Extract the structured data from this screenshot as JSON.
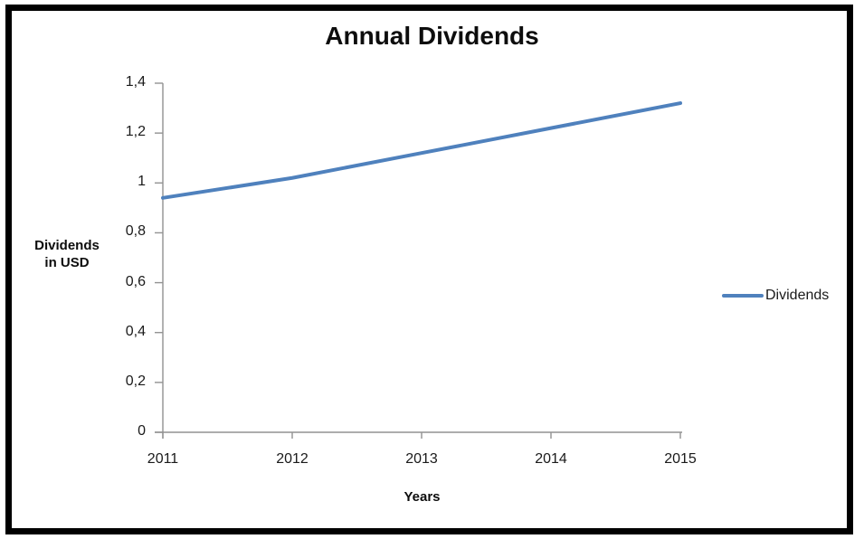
{
  "chart_data": {
    "type": "line",
    "title": "Annual Dividends",
    "xlabel": "Years",
    "ylabel": "Dividends in USD",
    "ylabel_lines": [
      "Dividends",
      "in USD"
    ],
    "categories": [
      "2011",
      "2012",
      "2013",
      "2014",
      "2015"
    ],
    "series": [
      {
        "name": "Dividends",
        "values": [
          0.94,
          1.02,
          1.12,
          1.22,
          1.32
        ],
        "color": "#4F81BD"
      }
    ],
    "ylim": [
      0,
      1.4
    ],
    "ytick_step": 0.2,
    "ytick_labels": [
      "0",
      "0,2",
      "0,4",
      "0,6",
      "0,8",
      "1",
      "1,2",
      "1,4"
    ],
    "decimal_separator": ",",
    "grid": false,
    "axis_color": "#929292",
    "text_color": "#1a1a1a",
    "legend": {
      "position": "right",
      "entries": [
        {
          "label": "Dividends",
          "color": "#4F81BD"
        }
      ]
    }
  }
}
